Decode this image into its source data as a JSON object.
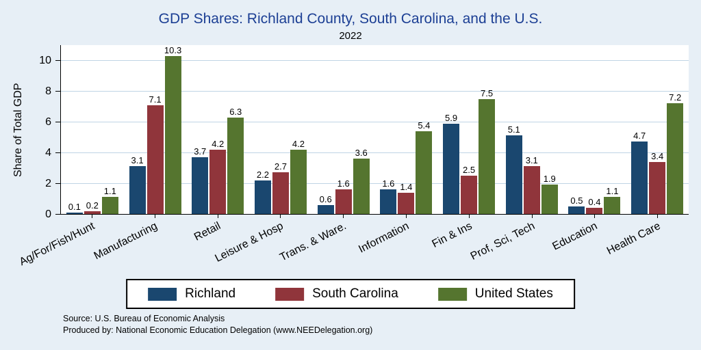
{
  "title": "GDP Shares: Richland County, South Carolina, and the U.S.",
  "subtitle": "2022",
  "ylabel": "Share of Total GDP",
  "legend": [
    "Richland",
    "South Carolina",
    "United States"
  ],
  "source_line1": "Source: U.S. Bureau of Economic Analysis",
  "source_line2": "Produced by: National Economic Education Delegation (www.NEEDelegation.org)",
  "colors": {
    "background": "#e7eff6",
    "plot_background": "#ffffff",
    "gridline": "#bfd4e5",
    "title_text": "#1c3f94",
    "richland": "#1a476f",
    "south_carolina": "#90353b",
    "united_states": "#55752f"
  },
  "chart_data": {
    "type": "bar",
    "title": "GDP Shares: Richland County, South Carolina, and the U.S.",
    "subtitle": "2022",
    "xlabel": "",
    "ylabel": "Share of Total GDP",
    "categories": [
      "Ag/For/Fish/Hunt",
      "Manufacturing",
      "Retail",
      "Leisure & Hosp",
      "Trans. & Ware.",
      "Information",
      "Fin & Ins",
      "Prof, Sci, Tech",
      "Education",
      "Health Care"
    ],
    "series": [
      {
        "name": "Richland",
        "color": "#1a476f",
        "values": [
          0.1,
          3.1,
          3.7,
          2.2,
          0.6,
          1.6,
          5.9,
          5.1,
          0.5,
          4.7
        ]
      },
      {
        "name": "South Carolina",
        "color": "#90353b",
        "values": [
          0.2,
          7.1,
          4.2,
          2.7,
          1.6,
          1.4,
          2.5,
          3.1,
          0.4,
          3.4
        ]
      },
      {
        "name": "United States",
        "color": "#55752f",
        "values": [
          1.1,
          10.3,
          6.3,
          4.2,
          3.6,
          5.4,
          7.5,
          1.9,
          1.1,
          7.2
        ]
      }
    ],
    "ylim": [
      0,
      11
    ],
    "yticks": [
      0,
      2,
      4,
      6,
      8,
      10
    ],
    "grid": true,
    "bar_value_labels": true,
    "legend_position": "bottom"
  }
}
